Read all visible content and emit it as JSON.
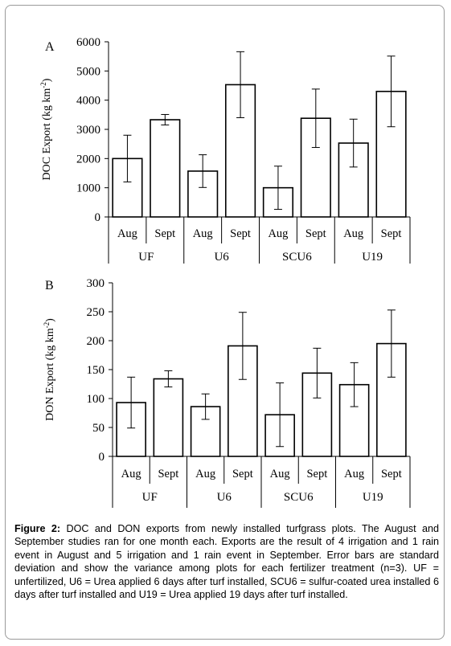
{
  "chart_data": [
    {
      "type": "bar",
      "panel_label": "A",
      "ylabel": "DOC Export (kg km",
      "ylabel_sup": "-2",
      "ylabel_end": ")",
      "ylim": [
        0,
        6000
      ],
      "yticks": [
        "0",
        "1000",
        "2000",
        "3000",
        "4000",
        "5000",
        "6000"
      ],
      "groups": [
        "UF",
        "U6",
        "SCU6",
        "U19"
      ],
      "subcategories": [
        "Aug",
        "Sept",
        "Aug",
        "Sept",
        "Aug",
        "Sept",
        "Aug",
        "Sept"
      ],
      "values": [
        2000,
        3330,
        1570,
        4530,
        1000,
        3380,
        2530,
        4300
      ],
      "errors": [
        800,
        180,
        560,
        1130,
        740,
        1000,
        820,
        1210
      ],
      "grid": false
    },
    {
      "type": "bar",
      "panel_label": "B",
      "ylabel": "DON Export (kg km",
      "ylabel_sup": "-2",
      "ylabel_end": ")",
      "ylim": [
        0,
        300
      ],
      "yticks": [
        "0",
        "50",
        "100",
        "150",
        "200",
        "250",
        "300"
      ],
      "groups": [
        "UF",
        "U6",
        "SCU6",
        "U19"
      ],
      "subcategories": [
        "Aug",
        "Sept",
        "Aug",
        "Sept",
        "Aug",
        "Sept",
        "Aug",
        "Sept"
      ],
      "values": [
        93,
        134,
        86,
        191,
        72,
        144,
        124,
        195
      ],
      "errors": [
        44,
        14,
        22,
        58,
        55,
        43,
        38,
        58
      ],
      "grid": false
    }
  ],
  "caption": {
    "label": "Figure 2:",
    "text": " DOC and DON exports from newly installed turfgrass plots.  The August and September studies ran for one month each.  Exports are the result of 4 irrigation and 1 rain event in August and 5 irrigation and 1 rain event in September.  Error bars are standard deviation and show the variance among plots for each fertilizer treatment (n=3). UF = unfertilized, U6 = Urea applied 6 days after turf installed, SCU6 = sulfur-coated urea installed 6 days after turf installed and U19 = Urea applied 19 days after turf installed."
  }
}
